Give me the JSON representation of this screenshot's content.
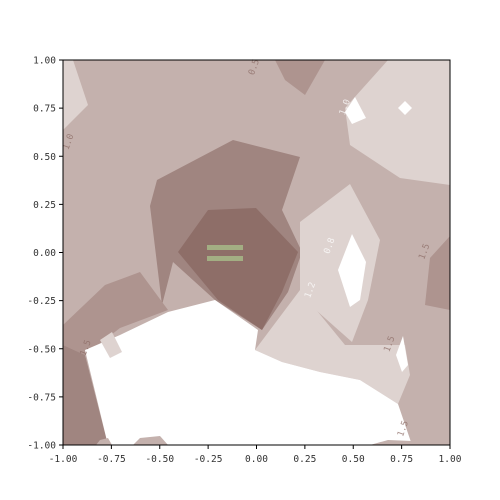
{
  "chart_data": {
    "type": "contour",
    "title": "",
    "xlabel": "",
    "ylabel": "",
    "xlim": [
      -1.0,
      1.0
    ],
    "ylim": [
      -1.0,
      1.0
    ],
    "x_ticks": [
      "-1.00",
      "-0.75",
      "-0.50",
      "-0.25",
      "0.00",
      "0.25",
      "0.50",
      "0.75",
      "1.00"
    ],
    "y_ticks": [
      "1.00",
      "0.75",
      "0.50",
      "0.25",
      "0.00",
      "-0.25",
      "-0.50",
      "-0.75",
      "-1.00"
    ],
    "grid": false,
    "legend": "none",
    "fill_levels": [
      {
        "level": 1,
        "color": "#c4b1ad"
      },
      {
        "level": 2,
        "color": "#ae948f"
      },
      {
        "level": 3,
        "color": "#a08580"
      },
      {
        "level": 4,
        "color": "#8e6e68"
      },
      {
        "level": 0,
        "color": "#ded3d0"
      }
    ],
    "contour_labels": [
      {
        "text": "1.0",
        "x": 0.47,
        "y": 0.75
      },
      {
        "text": "0.8",
        "x": 0.39,
        "y": 0.03
      },
      {
        "text": "1.2",
        "x": 0.29,
        "y": -0.2
      },
      {
        "text": "1.5",
        "x": 0.0,
        "y": -0.3
      },
      {
        "text": "1.0",
        "x": -1.0,
        "y": 0.57
      },
      {
        "text": "0.5",
        "x": 0.0,
        "y": 1.0
      },
      {
        "text": "1.5",
        "x": -0.87,
        "y": -0.5
      },
      {
        "text": "1.5",
        "x": 0.7,
        "y": -0.48
      },
      {
        "text": "1.5",
        "x": 0.88,
        "y": 0.0
      },
      {
        "text": "1.5",
        "x": 0.77,
        "y": -0.92
      }
    ]
  }
}
